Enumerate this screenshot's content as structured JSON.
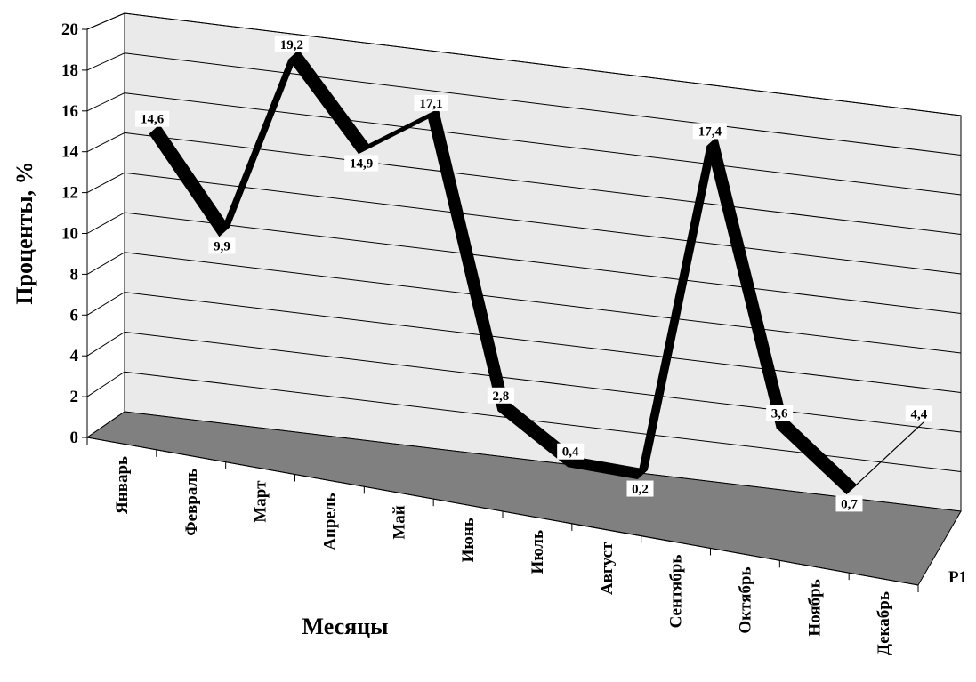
{
  "chart_data": {
    "type": "line",
    "style": "3d-ribbon",
    "title": "",
    "xlabel": "Месяцы",
    "ylabel": "Проценты, %",
    "categories": [
      "Январь",
      "Февраль",
      "Март",
      "Апрель",
      "Май",
      "Июнь",
      "Июль",
      "Август",
      "Сентябрь",
      "Октябрь",
      "Ноябрь",
      "Декабрь"
    ],
    "series": [
      {
        "name": "Р1",
        "values": [
          14.6,
          9.9,
          19.2,
          14.9,
          17.1,
          2.8,
          0.4,
          0.2,
          17.4,
          3.6,
          0.7,
          4.4
        ],
        "labels": [
          "14,6",
          "9,9",
          "19,2",
          "14,9",
          "17,1",
          "2,8",
          "0,4",
          "0,2",
          "17,4",
          "3,6",
          "0,7",
          "4,4"
        ],
        "color": "#000000"
      }
    ],
    "ylim": [
      0,
      20
    ],
    "yticks": [
      "0",
      "2",
      "4",
      "6",
      "8",
      "10",
      "12",
      "14",
      "16",
      "18",
      "20"
    ],
    "grid": true,
    "wall_color": "#eaeaea",
    "floor_color": "#808080"
  }
}
